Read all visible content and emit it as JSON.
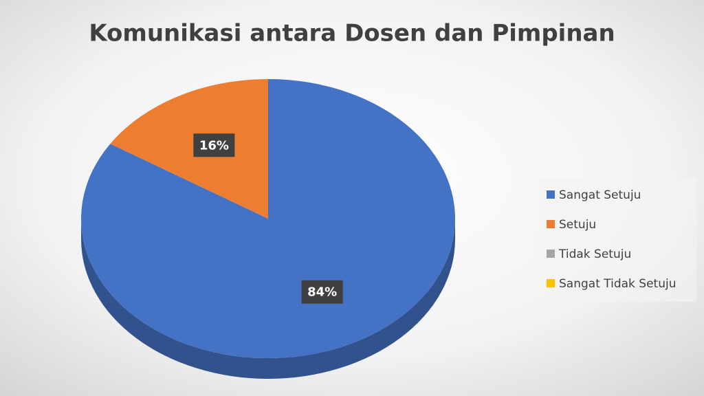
{
  "chart_data": {
    "type": "pie3d",
    "title": "Komunikasi antara Dosen dan Pimpinan",
    "categories": [
      "Sangat Setuju",
      "Setuju",
      "Tidak Setuju",
      "Sangat Tidak Setuju"
    ],
    "values": [
      84,
      16,
      0,
      0
    ],
    "value_labels": [
      "84%",
      "16%",
      null,
      null
    ],
    "colors": [
      "#4472c4",
      "#ed7d31",
      "#a5a5a5",
      "#ffc000"
    ],
    "legend": "right"
  }
}
